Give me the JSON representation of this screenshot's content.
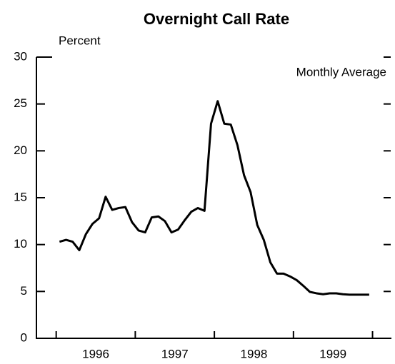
{
  "chart_data": {
    "type": "line",
    "title": "Overnight Call Rate",
    "y_label": "Percent",
    "annotation": "Monthly Average",
    "x": [
      1996.042,
      1996.125,
      1996.208,
      1996.292,
      1996.375,
      1996.458,
      1996.542,
      1996.625,
      1996.708,
      1996.792,
      1996.875,
      1996.958,
      1997.042,
      1997.125,
      1997.208,
      1997.292,
      1997.375,
      1997.458,
      1997.542,
      1997.625,
      1997.708,
      1997.792,
      1997.875,
      1997.958,
      1998.042,
      1998.125,
      1998.208,
      1998.292,
      1998.375,
      1998.458,
      1998.542,
      1998.625,
      1998.708,
      1998.792,
      1998.875,
      1998.958,
      1999.042,
      1999.125,
      1999.208,
      1999.292,
      1999.375,
      1999.458,
      1999.542,
      1999.625,
      1999.708,
      1999.792,
      1999.875,
      1999.958
    ],
    "series": [
      {
        "color": "#000000",
        "values": [
          10.3,
          10.5,
          10.3,
          9.4,
          11.1,
          12.2,
          12.8,
          15.1,
          13.7,
          13.9,
          14.0,
          12.4,
          11.5,
          11.3,
          12.9,
          13.0,
          12.5,
          11.3,
          11.6,
          12.6,
          13.5,
          13.9,
          13.6,
          22.9,
          25.3,
          22.9,
          22.8,
          20.6,
          17.4,
          15.6,
          12.1,
          10.5,
          8.1,
          6.9,
          6.9,
          6.6,
          6.2,
          5.6,
          4.95,
          4.8,
          4.7,
          4.8,
          4.8,
          4.7,
          4.65,
          4.65,
          4.65,
          4.65
        ]
      }
    ],
    "xlim": [
      1995.75,
      2000.23
    ],
    "xticks": [
      {
        "value": 1996.5,
        "label": "1996"
      },
      {
        "value": 1997.5,
        "label": "1997"
      },
      {
        "value": 1998.5,
        "label": "1998"
      },
      {
        "value": 1999.5,
        "label": "1999"
      }
    ],
    "xminorticks": [
      1996,
      1997,
      1998,
      1999,
      2000
    ],
    "ylim": [
      0,
      30
    ],
    "yticks": [
      0,
      5,
      10,
      15,
      20,
      25,
      30
    ]
  }
}
